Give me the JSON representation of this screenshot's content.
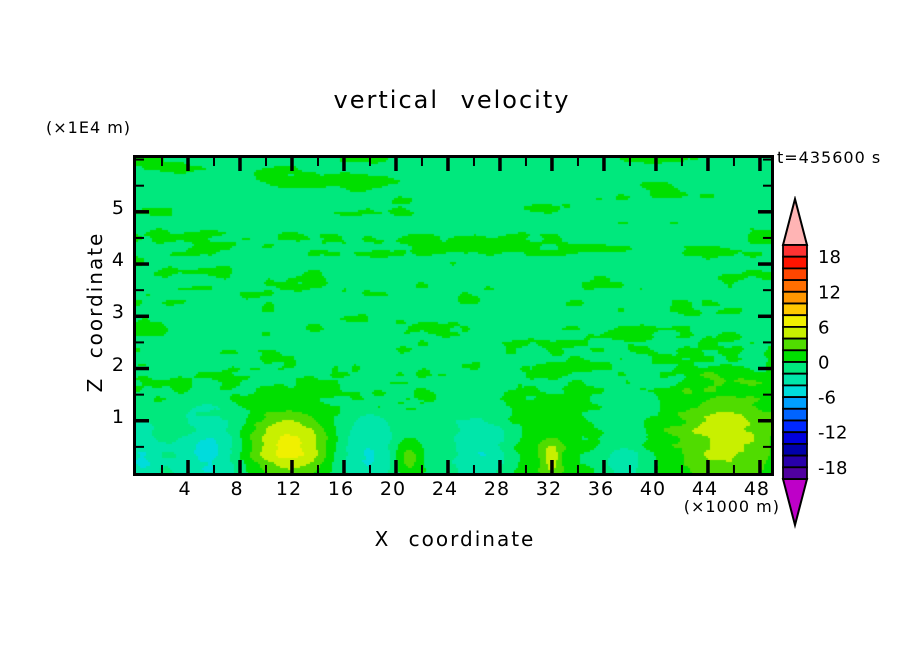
{
  "title": "vertical velocity",
  "time_label": "t=435600 s",
  "x_axis": {
    "label": "X coordinate",
    "unit": "(×1000 m)",
    "tick_values": [
      4,
      8,
      12,
      16,
      20,
      24,
      28,
      32,
      36,
      40,
      44,
      48
    ],
    "minor_step": 2,
    "min": 0,
    "max": 48.85
  },
  "z_axis": {
    "label": "Z coordinate",
    "unit": "(×1E4 m)",
    "tick_values": [
      1,
      2,
      3,
      4,
      5
    ],
    "minor_step": 0.5,
    "min": 0,
    "max": 6.03
  },
  "colorbar": {
    "labels": [
      "18",
      "12",
      "6",
      "0",
      "-6",
      "-12",
      "-18"
    ],
    "label_band_offsets": [
      1,
      4,
      7,
      10,
      13,
      16,
      19
    ],
    "overflow_color": "#FFB4B4",
    "underflow_color": "#BE00C8",
    "outline_color": "#000000"
  },
  "chart_data": {
    "type": "filled_contour",
    "title": "vertical velocity",
    "time_seconds": 435600,
    "x": {
      "label": "X coordinate",
      "units": "×1000 m",
      "min": 0,
      "max": 48.85,
      "major_tick_step": 4,
      "minor_tick_step": 2
    },
    "z": {
      "label": "Z coordinate",
      "units": "×1E4 m",
      "min": 0,
      "max": 6.03,
      "major_tick_step": 1,
      "minor_tick_step": 0.5
    },
    "contour_interval": 2,
    "levels_min": -20,
    "levels_max": 20,
    "band_colors": [
      "#5000A0",
      "#2800AA",
      "#0000AA",
      "#0000DC",
      "#0028FF",
      "#0064FF",
      "#00A0FF",
      "#00DCDC",
      "#00E6AA",
      "#00E87D",
      "#00DF00",
      "#50DC00",
      "#C8F000",
      "#F0F000",
      "#FFC800",
      "#FF9600",
      "#FF6E00",
      "#FF4600",
      "#FF1400",
      "#FF3232"
    ],
    "background_value": -0.9,
    "clamp_min": -1.2,
    "clamp_max": 1.9,
    "noise": {
      "streak": {
        "lx1": 130,
        "lz1": 13,
        "lx2": 60,
        "lz2": 9
      },
      "grain": {
        "lx1": 22,
        "lz1": 8,
        "lx2": 11,
        "lz2": 5
      }
    },
    "features": [
      {
        "x": 11.7,
        "z": 0.55,
        "sx": 2.3,
        "sz": 0.5,
        "a": 7.6
      },
      {
        "x": 5.6,
        "z": 0.4,
        "sx": 1.7,
        "sz": 0.55,
        "a": -3.6
      },
      {
        "x": 17.6,
        "z": 0.35,
        "sx": 1.6,
        "sz": 0.5,
        "a": -3.2
      },
      {
        "x": 20.9,
        "z": 0.3,
        "sx": 0.8,
        "sz": 0.28,
        "a": 4.2
      },
      {
        "x": 26.6,
        "z": 0.45,
        "sx": 1.5,
        "sz": 0.55,
        "a": -3.4
      },
      {
        "x": 31.6,
        "z": 0.6,
        "sx": 2.4,
        "sz": 0.85,
        "a": 2.2
      },
      {
        "x": 31.9,
        "z": 0.28,
        "sx": 0.55,
        "sz": 0.22,
        "a": 4.0
      },
      {
        "x": 37.4,
        "z": 0.3,
        "sx": 1.0,
        "sz": 0.32,
        "a": -2.8
      },
      {
        "x": 45.3,
        "z": 0.6,
        "sx": 3.2,
        "sz": 0.85,
        "a": 5.6
      },
      {
        "x": 0.4,
        "z": 0.25,
        "sx": 0.9,
        "sz": 0.45,
        "a": -3.4
      }
    ]
  }
}
